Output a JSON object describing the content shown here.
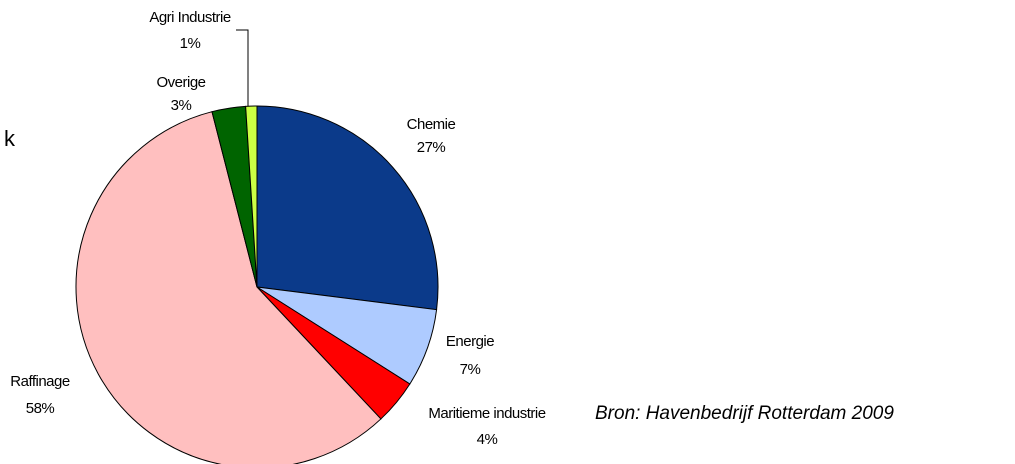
{
  "chart_data": {
    "type": "pie",
    "categories": [
      "Chemie",
      "Energie",
      "Maritieme industrie",
      "Raffinage",
      "Overige",
      "Agri Industrie"
    ],
    "values": [
      27,
      7,
      4,
      58,
      3,
      1
    ],
    "value_labels": [
      "27%",
      "7%",
      "4%",
      "58%",
      "3%",
      "1%"
    ],
    "colors": [
      "#0b3a8a",
      "#aecbff",
      "#ff0000",
      "#ffbfbf",
      "#006400",
      "#ccff44"
    ],
    "source": "Bron: Havenbedrijf Rotterdam 2009",
    "fragment": "k"
  }
}
